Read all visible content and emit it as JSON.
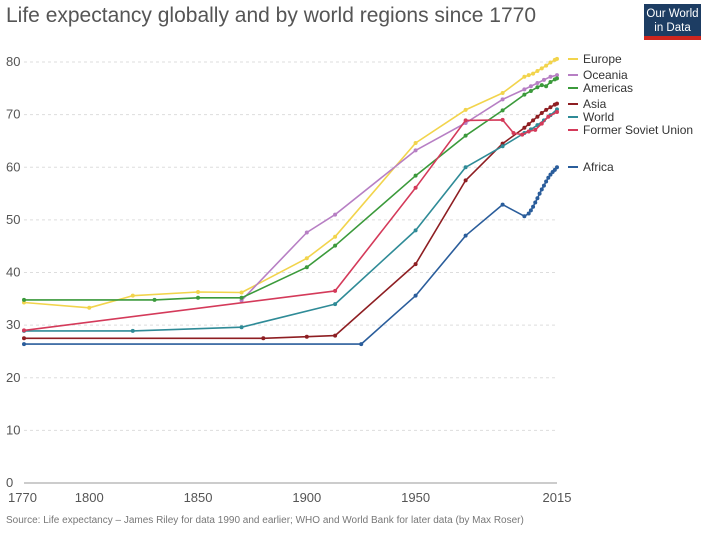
{
  "title": "Life expectancy globally and by world regions since 1770",
  "logo": {
    "line1": "Our World",
    "line2": "in Data"
  },
  "source": "Source: Life expectancy – James Riley for data 1990 and earlier; WHO and World Bank for later data (by Max Roser)",
  "chart_data": {
    "type": "line",
    "xlim": [
      1770,
      2015
    ],
    "ylim": [
      0,
      80
    ],
    "xticks": [
      "1770",
      "1800",
      "1850",
      "1900",
      "1950",
      "2015"
    ],
    "yticks": [
      "0",
      "10",
      "20",
      "30",
      "40",
      "50",
      "60",
      "70",
      "80"
    ],
    "grid": true,
    "legend_position": "right",
    "series": [
      {
        "name": "Europe",
        "color": "#f2d44c",
        "points": [
          [
            1770,
            34.3
          ],
          [
            1800,
            33.3
          ],
          [
            1820,
            35.6
          ],
          [
            1850,
            36.3
          ],
          [
            1870,
            36.2
          ],
          [
            1900,
            42.7
          ],
          [
            1913,
            46.8
          ],
          [
            1950,
            64.6
          ],
          [
            1973,
            70.9
          ],
          [
            1990,
            74.1
          ],
          [
            2000,
            77.2
          ],
          [
            2002,
            77.5
          ],
          [
            2004,
            77.8
          ],
          [
            2006,
            78.3
          ],
          [
            2008,
            78.8
          ],
          [
            2010,
            79.3
          ],
          [
            2012,
            79.9
          ],
          [
            2014,
            80.4
          ],
          [
            2015,
            80.6
          ]
        ]
      },
      {
        "name": "Oceania",
        "color": "#b77fc4",
        "points": [
          [
            1870,
            34.7
          ],
          [
            1900,
            47.6
          ],
          [
            1913,
            51.0
          ],
          [
            1950,
            63.2
          ],
          [
            1973,
            68.4
          ],
          [
            1990,
            72.9
          ],
          [
            2000,
            74.8
          ],
          [
            2003,
            75.4
          ],
          [
            2006,
            76.0
          ],
          [
            2009,
            76.6
          ],
          [
            2012,
            77.2
          ],
          [
            2015,
            77.5
          ]
        ]
      },
      {
        "name": "Americas",
        "color": "#3b9a3b",
        "points": [
          [
            1770,
            34.8
          ],
          [
            1830,
            34.8
          ],
          [
            1850,
            35.2
          ],
          [
            1870,
            35.2
          ],
          [
            1900,
            41.0
          ],
          [
            1913,
            45.1
          ],
          [
            1950,
            58.4
          ],
          [
            1973,
            66.0
          ],
          [
            1990,
            70.8
          ],
          [
            2000,
            73.8
          ],
          [
            2003,
            74.5
          ],
          [
            2006,
            75.2
          ],
          [
            2008,
            75.6
          ],
          [
            2010,
            75.4
          ],
          [
            2012,
            76.2
          ],
          [
            2014,
            76.7
          ],
          [
            2015,
            76.9
          ]
        ]
      },
      {
        "name": "Asia",
        "color": "#8e1e22",
        "points": [
          [
            1770,
            27.5
          ],
          [
            1880,
            27.5
          ],
          [
            1900,
            27.8
          ],
          [
            1913,
            28.0
          ],
          [
            1950,
            41.6
          ],
          [
            1973,
            57.5
          ],
          [
            1990,
            64.5
          ],
          [
            2000,
            67.5
          ],
          [
            2002,
            68.2
          ],
          [
            2004,
            68.9
          ],
          [
            2006,
            69.6
          ],
          [
            2008,
            70.3
          ],
          [
            2010,
            70.9
          ],
          [
            2012,
            71.4
          ],
          [
            2014,
            71.9
          ],
          [
            2015,
            72.1
          ]
        ]
      },
      {
        "name": "World",
        "color": "#2f8b97",
        "points": [
          [
            1770,
            28.9
          ],
          [
            1820,
            28.9
          ],
          [
            1870,
            29.6
          ],
          [
            1913,
            34.0
          ],
          [
            1950,
            48.0
          ],
          [
            1973,
            60.0
          ],
          [
            1990,
            64.0
          ],
          [
            2000,
            66.5
          ],
          [
            2003,
            67.2
          ],
          [
            2006,
            68.0
          ],
          [
            2009,
            68.9
          ],
          [
            2012,
            69.9
          ],
          [
            2015,
            71.0
          ]
        ]
      },
      {
        "name": "Former Soviet Union",
        "color": "#d43a5a",
        "points": [
          [
            1770,
            29.0
          ],
          [
            1913,
            36.5
          ],
          [
            1950,
            56.1
          ],
          [
            1973,
            68.9
          ],
          [
            1990,
            69.0
          ],
          [
            1995,
            66.5
          ],
          [
            1999,
            66.2
          ],
          [
            2002,
            66.8
          ],
          [
            2005,
            67.1
          ],
          [
            2008,
            68.3
          ],
          [
            2011,
            69.6
          ],
          [
            2015,
            70.5
          ]
        ]
      },
      {
        "name": "Africa",
        "color": "#2a5d9b",
        "points": [
          [
            1770,
            26.4
          ],
          [
            1925,
            26.4
          ],
          [
            1950,
            35.6
          ],
          [
            1973,
            47.0
          ],
          [
            1990,
            52.9
          ],
          [
            2000,
            50.7
          ],
          [
            2002,
            51.2
          ],
          [
            2003,
            51.8
          ],
          [
            2004,
            52.5
          ],
          [
            2005,
            53.3
          ],
          [
            2006,
            54.1
          ],
          [
            2007,
            55.0
          ],
          [
            2008,
            55.8
          ],
          [
            2009,
            56.5
          ],
          [
            2010,
            57.3
          ],
          [
            2011,
            58.0
          ],
          [
            2012,
            58.6
          ],
          [
            2013,
            59.1
          ],
          [
            2014,
            59.5
          ],
          [
            2015,
            60.0
          ]
        ]
      }
    ]
  }
}
